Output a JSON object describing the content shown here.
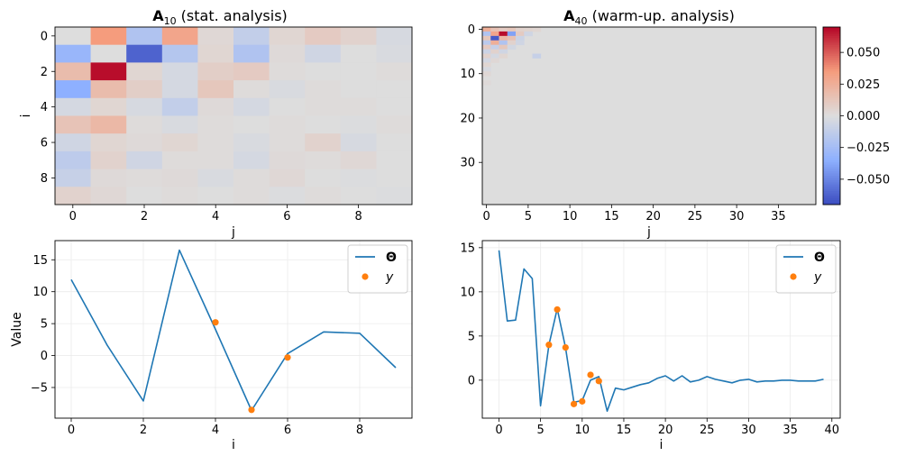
{
  "figure": {
    "panels": {
      "a10": {
        "title_bold": "A",
        "title_sub": "10",
        "title_rest": " (stat. analysis)"
      },
      "a40": {
        "title_bold": "A",
        "title_sub": "40",
        "title_rest": " (warm-up. analysis)"
      }
    }
  },
  "chart_data": [
    {
      "id": "a10",
      "type": "heatmap",
      "xlabel": "j",
      "ylabel": "i",
      "size": 10,
      "xticks": [
        0,
        2,
        4,
        6,
        8
      ],
      "yticks": [
        0,
        2,
        4,
        6,
        8
      ],
      "vmin": -0.07,
      "vmax": 0.07,
      "cmap": "coolwarm",
      "values": [
        [
          0.0,
          0.035,
          -0.02,
          0.03,
          0.003,
          -0.012,
          0.004,
          0.01,
          0.006,
          -0.003
        ],
        [
          -0.03,
          0.0,
          -0.062,
          -0.018,
          0.004,
          -0.02,
          0.002,
          -0.006,
          0.0,
          -0.002
        ],
        [
          0.018,
          0.068,
          0.004,
          -0.004,
          0.008,
          0.01,
          0.001,
          0.0,
          0.0,
          0.001
        ],
        [
          -0.035,
          0.018,
          0.008,
          -0.004,
          0.012,
          0.001,
          -0.002,
          0.001,
          0.0,
          0.0
        ],
        [
          -0.004,
          0.004,
          -0.003,
          -0.012,
          0.002,
          -0.004,
          0.0,
          0.001,
          0.001,
          0.0
        ],
        [
          0.014,
          0.02,
          0.001,
          -0.002,
          0.001,
          0.0,
          0.001,
          0.0,
          -0.001,
          0.001
        ],
        [
          -0.006,
          0.004,
          0.002,
          0.004,
          0.001,
          -0.002,
          0.001,
          0.006,
          -0.003,
          0.0
        ],
        [
          -0.014,
          0.006,
          -0.006,
          0.001,
          0.001,
          -0.004,
          0.002,
          0.001,
          0.003,
          0.0
        ],
        [
          -0.01,
          0.002,
          0.001,
          0.002,
          -0.002,
          0.001,
          0.003,
          0.0,
          -0.001,
          0.0
        ],
        [
          0.006,
          0.003,
          0.0,
          0.001,
          0.0,
          0.001,
          -0.001,
          0.001,
          0.0,
          -0.001
        ]
      ]
    },
    {
      "id": "a40",
      "type": "heatmap",
      "xlabel": "j",
      "ylabel": "",
      "size": 40,
      "xticks": [
        0,
        5,
        10,
        15,
        20,
        25,
        30,
        35
      ],
      "yticks": [
        0,
        10,
        20,
        30
      ],
      "vmin": -0.07,
      "vmax": 0.07,
      "cmap": "coolwarm",
      "cells": [
        [
          0,
          0,
          0.025
        ],
        [
          0,
          1,
          0.015
        ],
        [
          0,
          2,
          0.01
        ],
        [
          0,
          3,
          0.012
        ],
        [
          0,
          4,
          0.006
        ],
        [
          0,
          5,
          0.005
        ],
        [
          0,
          6,
          0.004
        ],
        [
          1,
          0,
          -0.02
        ],
        [
          1,
          1,
          0.03
        ],
        [
          1,
          2,
          0.068
        ],
        [
          1,
          3,
          -0.04
        ],
        [
          1,
          4,
          0.01
        ],
        [
          1,
          5,
          -0.006
        ],
        [
          2,
          0,
          0.012
        ],
        [
          2,
          1,
          -0.065
        ],
        [
          2,
          2,
          0.02
        ],
        [
          2,
          3,
          0.015
        ],
        [
          2,
          4,
          -0.008
        ],
        [
          3,
          0,
          -0.015
        ],
        [
          3,
          1,
          0.025
        ],
        [
          3,
          2,
          -0.02
        ],
        [
          3,
          3,
          0.006
        ],
        [
          3,
          4,
          -0.006
        ],
        [
          4,
          0,
          0.01
        ],
        [
          4,
          1,
          -0.01
        ],
        [
          4,
          2,
          0.012
        ],
        [
          4,
          3,
          -0.005
        ],
        [
          5,
          0,
          -0.008
        ],
        [
          5,
          1,
          0.006
        ],
        [
          5,
          2,
          -0.006
        ],
        [
          6,
          0,
          0.006
        ],
        [
          6,
          1,
          -0.004
        ],
        [
          6,
          2,
          0.004
        ],
        [
          6,
          6,
          -0.01
        ],
        [
          7,
          0,
          -0.005
        ],
        [
          7,
          1,
          0.003
        ],
        [
          8,
          0,
          0.004
        ],
        [
          9,
          0,
          -0.003
        ],
        [
          10,
          0,
          0.003
        ],
        [
          12,
          0,
          0.002
        ]
      ],
      "colorbar": {
        "ticks": [
          -0.05,
          -0.025,
          0,
          0.025,
          0.05
        ],
        "tick_labels": [
          "−0.050",
          "−0.025",
          "0.000",
          "0.025",
          "0.050"
        ]
      }
    },
    {
      "id": "theta10",
      "type": "line",
      "xlabel": "i",
      "ylabel": "Value",
      "xlim": [
        -0.45,
        9.45
      ],
      "ylim": [
        -9.8,
        18.0
      ],
      "xticks": [
        0,
        2,
        4,
        6,
        8
      ],
      "yticks": [
        -5,
        0,
        5,
        10,
        15
      ],
      "grid": true,
      "legend": "top-right",
      "series": [
        {
          "name": "Θ",
          "kind": "line",
          "color": "#1f77b4",
          "x": [
            0,
            1,
            2,
            3,
            4,
            5,
            6,
            7,
            8,
            9
          ],
          "y": [
            11.9,
            1.6,
            -7.1,
            16.5,
            4.1,
            -8.6,
            0.3,
            3.7,
            3.5,
            -1.9
          ]
        },
        {
          "name": "y",
          "kind": "scatter",
          "color": "#ff7f0e",
          "x": [
            4,
            5,
            6
          ],
          "y": [
            5.2,
            -8.5,
            -0.3
          ]
        }
      ]
    },
    {
      "id": "theta40",
      "type": "line",
      "xlabel": "i",
      "ylabel": "",
      "xlim": [
        -2.0,
        41.0
      ],
      "ylim": [
        -4.3,
        15.8
      ],
      "xticks": [
        0,
        5,
        10,
        15,
        20,
        25,
        30,
        35,
        40
      ],
      "yticks": [
        0,
        5,
        10,
        15
      ],
      "grid": true,
      "legend": "top-right",
      "series": [
        {
          "name": "Θ",
          "kind": "line",
          "color": "#1f77b4",
          "x": [
            0,
            1,
            2,
            3,
            4,
            5,
            6,
            7,
            8,
            9,
            10,
            11,
            12,
            13,
            14,
            15,
            16,
            17,
            18,
            19,
            20,
            21,
            22,
            23,
            24,
            25,
            26,
            27,
            28,
            29,
            30,
            31,
            32,
            33,
            34,
            35,
            36,
            37,
            38,
            39
          ],
          "y": [
            14.7,
            6.7,
            6.8,
            12.6,
            11.5,
            -2.9,
            4.0,
            8.1,
            3.7,
            -2.5,
            -2.3,
            0.0,
            0.4,
            -3.5,
            -0.9,
            -1.1,
            -0.8,
            -0.5,
            -0.3,
            0.2,
            0.5,
            -0.1,
            0.5,
            -0.2,
            0.0,
            0.4,
            0.1,
            -0.1,
            -0.3,
            0.0,
            0.1,
            -0.2,
            -0.1,
            -0.1,
            0.0,
            0.0,
            -0.1,
            -0.1,
            -0.1,
            0.1
          ]
        },
        {
          "name": "y",
          "kind": "scatter",
          "color": "#ff7f0e",
          "x": [
            6,
            7,
            8,
            9,
            10,
            11,
            12
          ],
          "y": [
            4.0,
            8.0,
            3.7,
            -2.7,
            -2.4,
            0.6,
            -0.1
          ]
        }
      ]
    }
  ]
}
